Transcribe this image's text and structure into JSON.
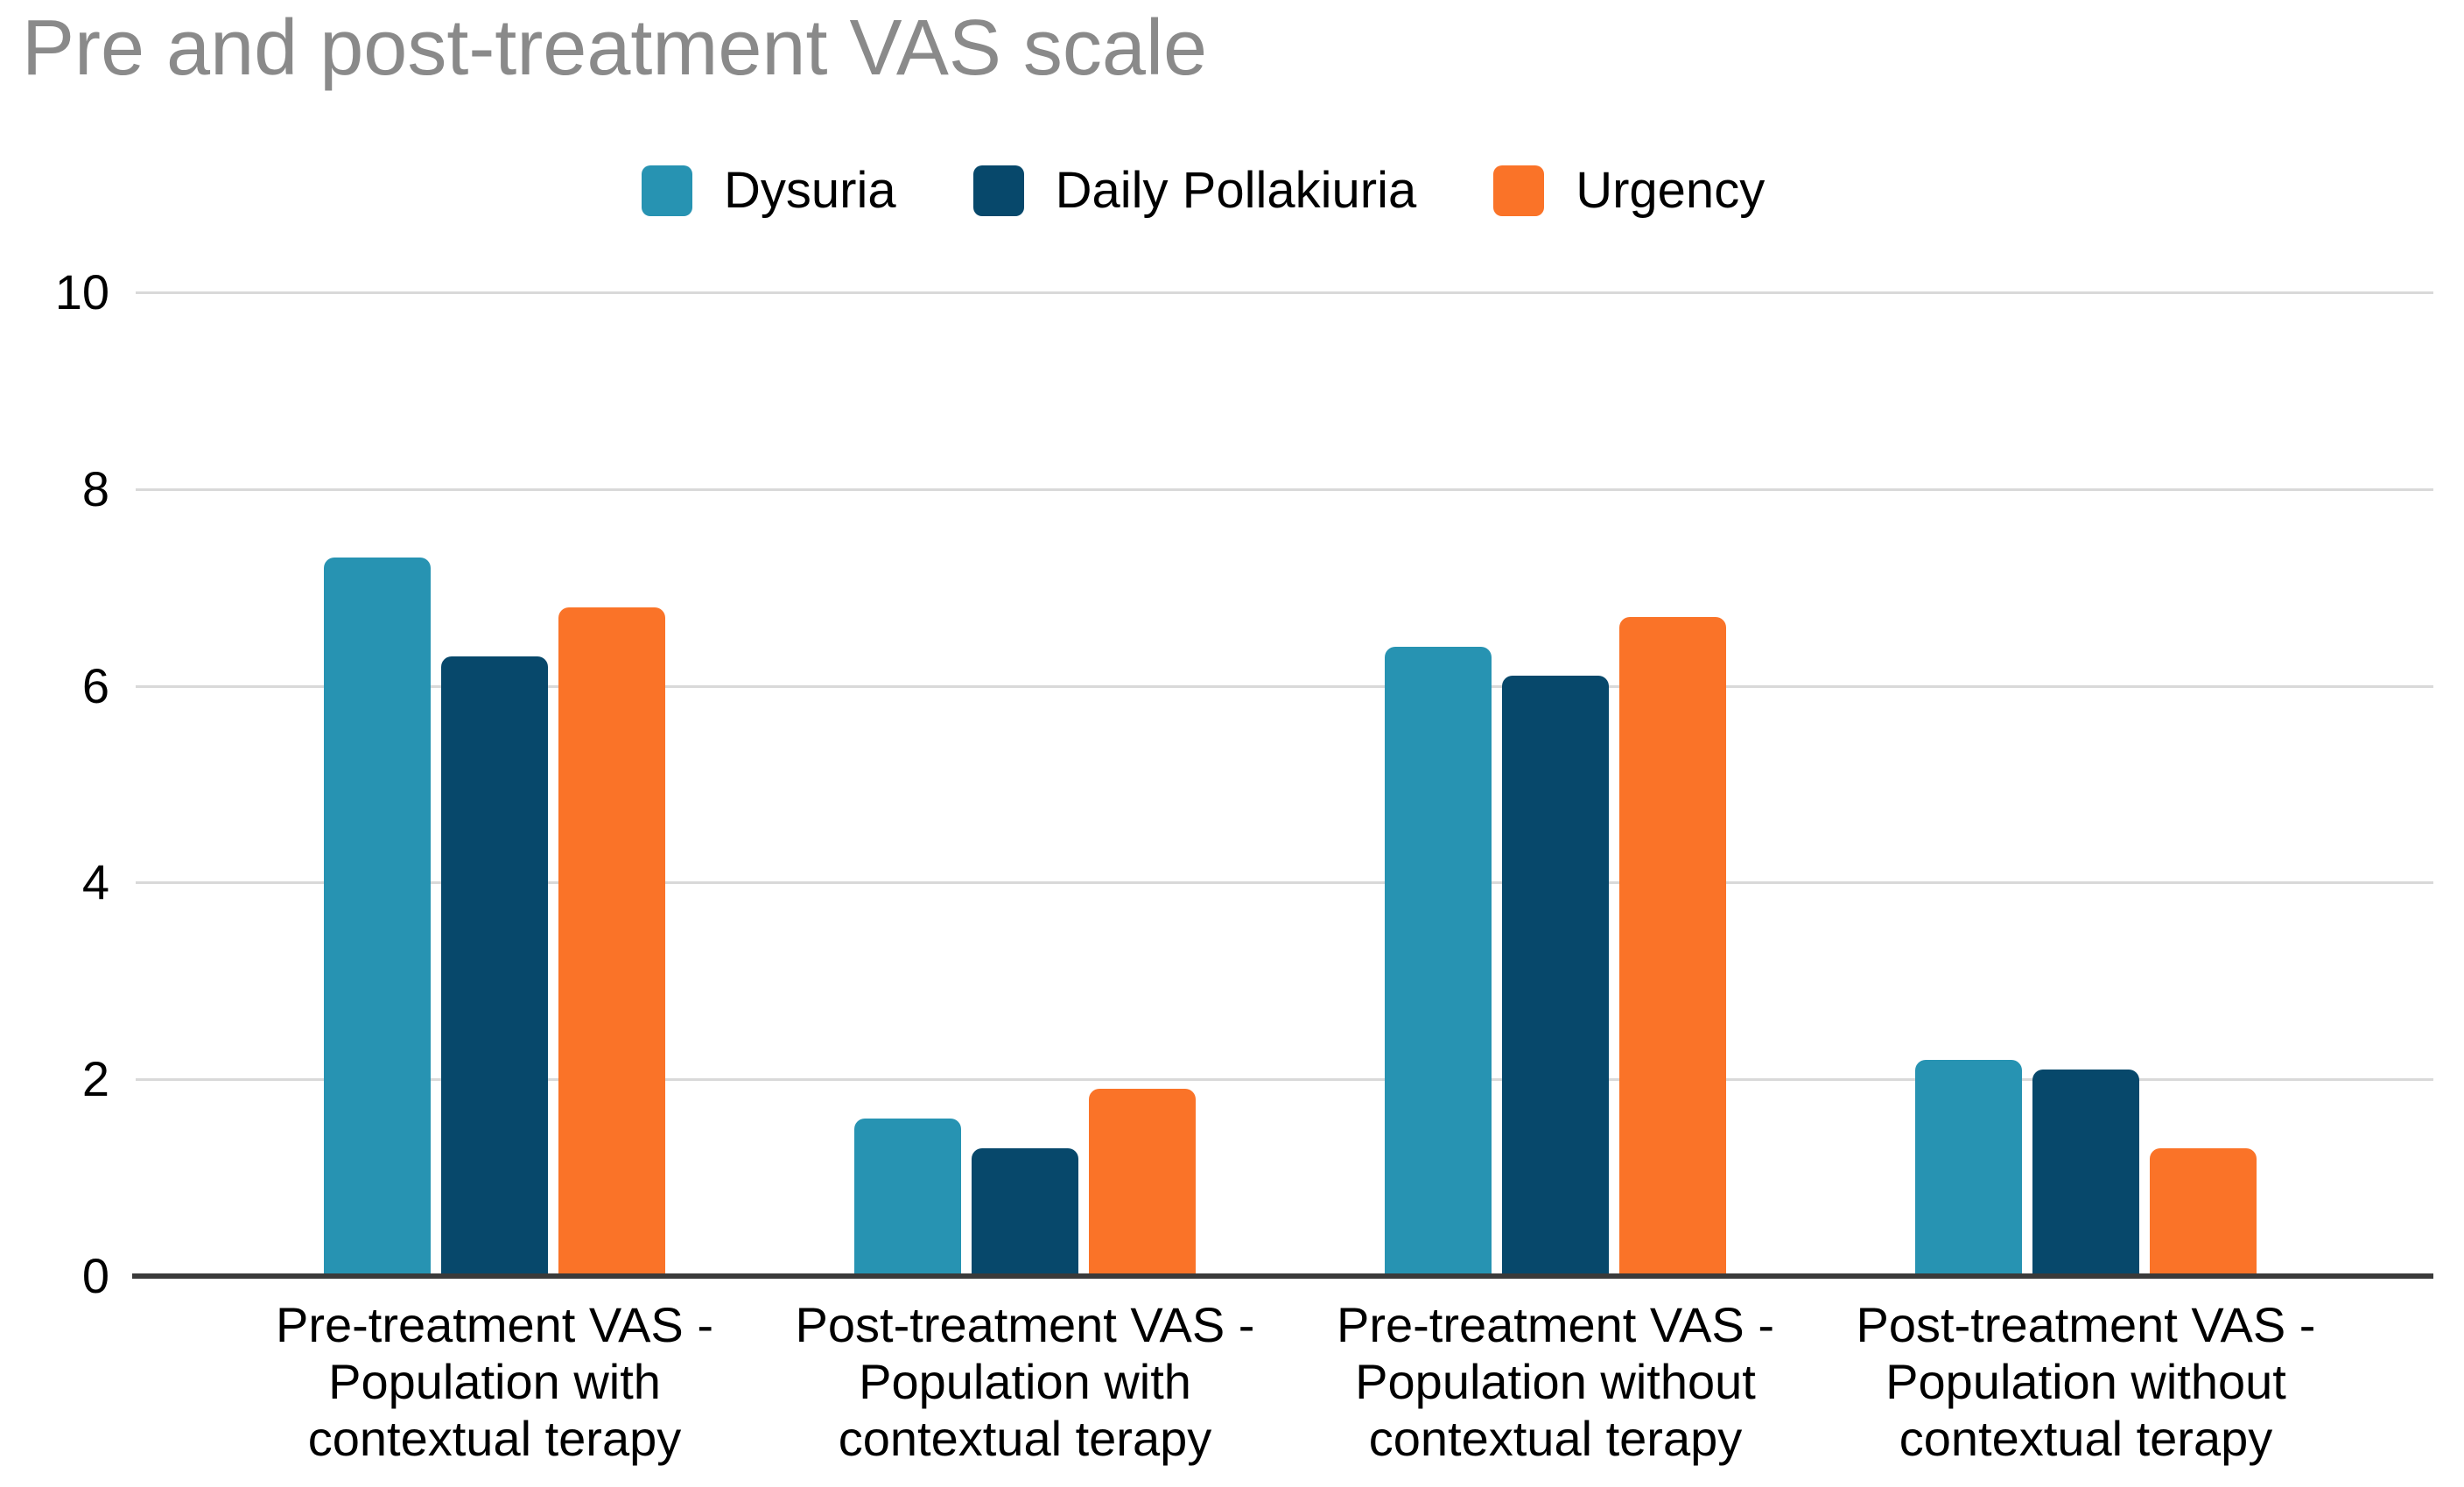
{
  "title": "Pre and post-treatment VAS scale",
  "chart_data": {
    "type": "bar",
    "title": "Pre and post-treatment VAS scale",
    "categories": [
      "Pre-treatment VAS -\nPopulation with\ncontextual terapy",
      "Post-treatment VAS -\nPopulation with\ncontextual terapy",
      "Pre-treatment VAS -\nPopulation without\ncontextual terapy",
      "Post-treatment VAS -\nPopulation without\ncontextual terapy"
    ],
    "series": [
      {
        "name": "Dysuria",
        "color": "#2793b2",
        "values": [
          7.3,
          1.6,
          6.4,
          2.2
        ]
      },
      {
        "name": "Daily Pollakiuria",
        "color": "#07486b",
        "values": [
          6.3,
          1.3,
          6.1,
          2.1
        ]
      },
      {
        "name": "Urgency",
        "color": "#fa7328",
        "values": [
          6.8,
          1.9,
          6.7,
          1.3
        ]
      }
    ],
    "xlabel": "",
    "ylabel": "",
    "ylim": [
      0,
      10
    ],
    "y_ticks": [
      0,
      2,
      4,
      6,
      8,
      10
    ],
    "grid": true,
    "legend_position": "top",
    "colors": {
      "title_text": "#8a8a8a",
      "axis_text": "#000000",
      "gridline": "#d9d9d9",
      "axis_line": "#3a3a3a",
      "background": "#ffffff"
    }
  }
}
